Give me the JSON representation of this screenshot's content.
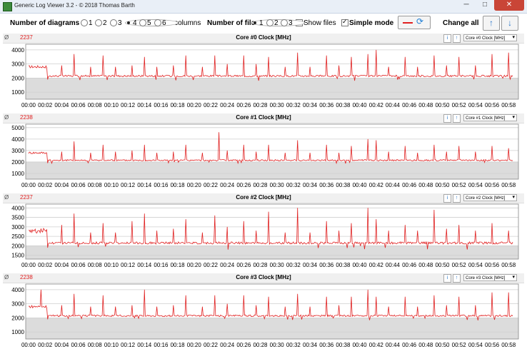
{
  "window": {
    "title": "Generic Log Viewer 3.2 - © 2018 Thomas Barth",
    "minimize": "─",
    "maximize": "□",
    "close": "✕"
  },
  "toolbar": {
    "num_diagrams_label": "Number of diagrams",
    "diagram_options": [
      "1",
      "2",
      "3",
      "4",
      "5",
      "6"
    ],
    "diagram_selected": "4",
    "two_columns": "Two columns",
    "num_files_label": "Number of files",
    "file_options": [
      "1",
      "2",
      "3"
    ],
    "file_selected": "1",
    "show_files": "Show files",
    "simple_mode": "Simple mode",
    "simple_mode_checked": true,
    "change_all": "Change all"
  },
  "colors": {
    "series": "#e02020",
    "band": "#dcdcdc"
  },
  "x_ticks": [
    "00:00",
    "00:02",
    "00:04",
    "00:06",
    "00:08",
    "00:10",
    "00:12",
    "00:14",
    "00:16",
    "00:18",
    "00:20",
    "00:22",
    "00:24",
    "00:26",
    "00:28",
    "00:30",
    "00:32",
    "00:34",
    "00:36",
    "00:38",
    "00:40",
    "00:42",
    "00:44",
    "00:46",
    "00:48",
    "00:50",
    "00:52",
    "00:54",
    "00:56",
    "00:58"
  ],
  "panels": [
    {
      "avg_symbol": "Ø",
      "avg": "2237",
      "title": "Core #0 Clock [MHz]",
      "select": "Core #0 Clock [MHz]",
      "y_ticks": [
        "1000",
        "2000",
        "3000",
        "4000"
      ],
      "ymin": 500,
      "ymax": 4400,
      "spikes": [
        [
          4.0,
          2900
        ],
        [
          5.5,
          3700
        ],
        [
          7.5,
          2800
        ],
        [
          9,
          3600
        ],
        [
          10.5,
          2800
        ],
        [
          12.5,
          2900
        ],
        [
          14,
          3500
        ],
        [
          15.5,
          2800
        ],
        [
          17.5,
          2900
        ],
        [
          19,
          3600
        ],
        [
          21,
          2800
        ],
        [
          22.5,
          3600
        ],
        [
          24,
          3000
        ],
        [
          26,
          3600
        ],
        [
          27.5,
          3000
        ],
        [
          29,
          3500
        ],
        [
          31,
          2800
        ],
        [
          32.5,
          3800
        ],
        [
          34,
          2800
        ],
        [
          36,
          3600
        ],
        [
          37.5,
          2900
        ],
        [
          39,
          3500
        ],
        [
          41,
          3700
        ],
        [
          42,
          4000
        ],
        [
          43.5,
          2800
        ],
        [
          45.5,
          3500
        ],
        [
          47,
          2800
        ],
        [
          49,
          3600
        ],
        [
          50.5,
          2900
        ],
        [
          52,
          3500
        ],
        [
          54,
          2900
        ],
        [
          56,
          3700
        ],
        [
          58,
          3800
        ]
      ]
    },
    {
      "avg_symbol": "Ø",
      "avg": "2238",
      "title": "Core #1 Clock [MHz]",
      "select": "Core #1 Clock [MHz]",
      "y_ticks": [
        "1000",
        "2000",
        "3000",
        "4000",
        "5000"
      ],
      "ymin": 500,
      "ymax": 5300,
      "spikes": [
        [
          4.0,
          2900
        ],
        [
          5.5,
          3800
        ],
        [
          7.5,
          2800
        ],
        [
          9,
          3500
        ],
        [
          10.5,
          2900
        ],
        [
          12.5,
          3000
        ],
        [
          14,
          3500
        ],
        [
          15.5,
          2800
        ],
        [
          17.5,
          2900
        ],
        [
          19,
          3500
        ],
        [
          21,
          2800
        ],
        [
          23,
          4600
        ],
        [
          24,
          3000
        ],
        [
          26,
          3500
        ],
        [
          27.5,
          2900
        ],
        [
          29,
          3500
        ],
        [
          31,
          2800
        ],
        [
          32.5,
          3900
        ],
        [
          34,
          2800
        ],
        [
          36,
          3500
        ],
        [
          37.5,
          2800
        ],
        [
          39,
          3400
        ],
        [
          41,
          4000
        ],
        [
          42,
          3900
        ],
        [
          43.5,
          2900
        ],
        [
          45.5,
          3400
        ],
        [
          47,
          2800
        ],
        [
          49,
          3500
        ],
        [
          50.5,
          2900
        ],
        [
          52,
          3400
        ],
        [
          54,
          2900
        ],
        [
          56,
          3400
        ],
        [
          58,
          3200
        ]
      ]
    },
    {
      "avg_symbol": "Ø",
      "avg": "2237",
      "title": "Core #2 Clock [MHz]",
      "select": "Core #2 Clock [MHz]",
      "y_ticks": [
        "1500",
        "2000",
        "2500",
        "3000",
        "3500",
        "4000"
      ],
      "ymin": 1300,
      "ymax": 4200,
      "spikes": [
        [
          4.0,
          3100
        ],
        [
          5.5,
          3700
        ],
        [
          7.5,
          2700
        ],
        [
          9,
          3200
        ],
        [
          10.5,
          2700
        ],
        [
          12.5,
          3300
        ],
        [
          14,
          3700
        ],
        [
          15.5,
          2800
        ],
        [
          17.5,
          2900
        ],
        [
          19,
          3400
        ],
        [
          21,
          2700
        ],
        [
          22.5,
          3600
        ],
        [
          24,
          3000
        ],
        [
          26,
          3300
        ],
        [
          27.5,
          2800
        ],
        [
          29,
          3800
        ],
        [
          31,
          2700
        ],
        [
          32.5,
          4000
        ],
        [
          34,
          2700
        ],
        [
          36,
          3300
        ],
        [
          37.5,
          2800
        ],
        [
          39,
          3200
        ],
        [
          41,
          4000
        ],
        [
          42,
          3400
        ],
        [
          43.5,
          2800
        ],
        [
          45.5,
          3100
        ],
        [
          47,
          2800
        ],
        [
          49,
          3900
        ],
        [
          50.5,
          2900
        ],
        [
          52,
          3100
        ],
        [
          54,
          2800
        ],
        [
          56,
          3200
        ],
        [
          58,
          2800
        ]
      ]
    },
    {
      "avg_symbol": "Ø",
      "avg": "2238",
      "title": "Core #3 Clock [MHz]",
      "select": "Core #3 Clock [MHz]",
      "y_ticks": [
        "1000",
        "2000",
        "3000",
        "4000"
      ],
      "ymin": 500,
      "ymax": 4400,
      "spikes": [
        [
          1.5,
          4000
        ],
        [
          4.0,
          2900
        ],
        [
          5.5,
          3700
        ],
        [
          7.5,
          2800
        ],
        [
          9,
          3600
        ],
        [
          10.5,
          2800
        ],
        [
          12.5,
          2900
        ],
        [
          14,
          4000
        ],
        [
          15.5,
          2800
        ],
        [
          17.5,
          2900
        ],
        [
          19,
          3600
        ],
        [
          21,
          2800
        ],
        [
          22.5,
          3600
        ],
        [
          24,
          3000
        ],
        [
          26,
          3600
        ],
        [
          27.5,
          2900
        ],
        [
          29,
          3500
        ],
        [
          31,
          2800
        ],
        [
          32.5,
          3700
        ],
        [
          34,
          2800
        ],
        [
          36,
          3500
        ],
        [
          37.5,
          2900
        ],
        [
          39,
          3500
        ],
        [
          41,
          4000
        ],
        [
          42,
          3500
        ],
        [
          43.5,
          2800
        ],
        [
          45.5,
          3500
        ],
        [
          47,
          2800
        ],
        [
          49,
          3600
        ],
        [
          50.5,
          2900
        ],
        [
          52,
          3500
        ],
        [
          54,
          2900
        ],
        [
          56,
          3800
        ],
        [
          58,
          3800
        ]
      ]
    }
  ]
}
